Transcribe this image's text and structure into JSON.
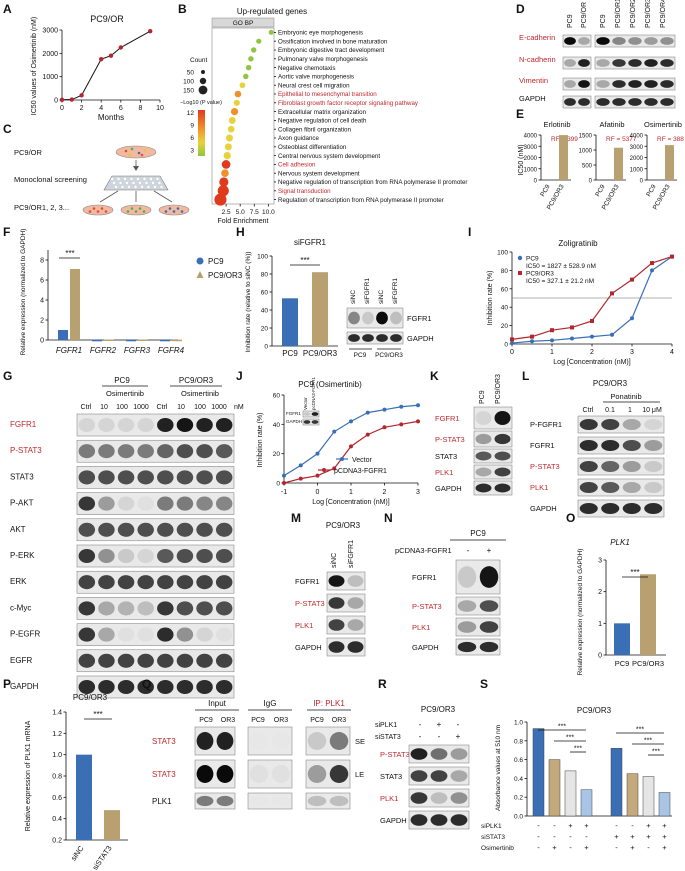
{
  "colors": {
    "pc9": "#3a6fb5",
    "or3": "#b8a070",
    "red_line": "#b3262e",
    "red_text": "#c0282e",
    "black": "#111111",
    "orange": "#e8953a",
    "light_blue": "#aac4e6",
    "grey": "#d8d8d8",
    "blue_accent": "#6aa8ff"
  },
  "panels": {
    "A": "A",
    "B": "B",
    "C": "C",
    "D": "D",
    "E": "E",
    "F": "F",
    "G": "G",
    "H": "H",
    "I": "I",
    "J": "J",
    "K": "K",
    "L": "L",
    "M": "M",
    "N": "N",
    "O": "O",
    "P": "P",
    "Q": "Q",
    "R": "R",
    "S": "S"
  },
  "panelA": {
    "title": "PC9/OR",
    "ylabel": "IC50 values of Osimertinib (nM)",
    "xlabel": "Months",
    "chart_data": {
      "type": "line",
      "x": [
        0,
        1,
        2,
        4,
        5,
        6,
        9
      ],
      "y": [
        10,
        20,
        200,
        1750,
        1900,
        2250,
        2950
      ],
      "xlim": [
        0,
        10
      ],
      "ylim": [
        0,
        3000
      ],
      "xticks": [
        "0",
        "2",
        "4",
        "6",
        "8",
        "10"
      ],
      "yticks": [
        "0",
        "1000",
        "2000",
        "3000"
      ]
    }
  },
  "panelB": {
    "title": "Up-regulated genes",
    "header": "GO BP",
    "xlabel": "Fold Enrichment",
    "legend_count_title": "Count",
    "legend_counts": [
      "50",
      "100",
      "150"
    ],
    "legend_p_title": "−Log10 (P value)",
    "legend_p_ticks": [
      "12",
      "9",
      "6",
      "3"
    ],
    "xticks": [
      "2.5",
      "5.0",
      "7.5",
      "10.0"
    ],
    "terms": [
      {
        "name": "Embryonic eye morphogenesis",
        "red": false
      },
      {
        "name": "Ossification involved in bone maturation",
        "red": false
      },
      {
        "name": "Embryonic digestive tract development",
        "red": false
      },
      {
        "name": "Pulmonary valve morphogenesis",
        "red": false
      },
      {
        "name": "Negative chemotaxis",
        "red": false
      },
      {
        "name": "Aortic valve morphogenesis",
        "red": false
      },
      {
        "name": "Neural crest cell migration",
        "red": false
      },
      {
        "name": "Epithelial to mesenchymal transition",
        "red": true
      },
      {
        "name": "Fibroblast growth factor receptor signaling pathway",
        "red": true
      },
      {
        "name": "Extracellular matrix organization",
        "red": false
      },
      {
        "name": "Negative regulation of cell death",
        "red": false
      },
      {
        "name": "Collagen fibril organization",
        "red": false
      },
      {
        "name": "Axon guidance",
        "red": false
      },
      {
        "name": "Osteoblast differentiation",
        "red": false
      },
      {
        "name": "Central nervous system development",
        "red": false
      },
      {
        "name": "Cell adhesion",
        "red": true
      },
      {
        "name": "Nervous system development",
        "red": false
      },
      {
        "name": "Negative regulation of transcription from RNA polymerase II promoter",
        "red": false
      },
      {
        "name": "Signal transduction",
        "red": true
      },
      {
        "name": "Regulation of transcription from RNA polymerase II promoter",
        "red": false
      }
    ],
    "chart_data": {
      "type": "scatter",
      "fold_enrichment": [
        10.5,
        8.3,
        7.4,
        6.9,
        6.5,
        6.0,
        5.4,
        4.6,
        4.4,
        4.0,
        3.6,
        3.4,
        3.1,
        2.9,
        2.7,
        2.5,
        2.3,
        2.1,
        2.0,
        1.5
      ],
      "count": [
        8,
        10,
        12,
        12,
        12,
        12,
        15,
        25,
        20,
        35,
        30,
        25,
        30,
        30,
        35,
        60,
        40,
        70,
        120,
        150
      ],
      "neg_log10_p": [
        3,
        3,
        3,
        3,
        3,
        3,
        4,
        7,
        5,
        9,
        6,
        5,
        5,
        5,
        6,
        10,
        7,
        11,
        13,
        14
      ]
    }
  },
  "panelC": {
    "label1": "PC9/OR",
    "label2": "Monoclonal screening",
    "label3": "PC9/OR1, 2, 3..."
  },
  "panelD": {
    "cols_left": [
      "PC9",
      "PC9/OR"
    ],
    "cols_right": [
      "PC9",
      "PC9/OR1",
      "PC9/OR2",
      "PC9/OR3",
      "PC9/OR4"
    ],
    "rows": [
      {
        "name": "E-cadherin",
        "red": true
      },
      {
        "name": "N-cadherin",
        "red": true
      },
      {
        "name": "Vimentin",
        "red": true
      },
      {
        "name": "GAPDH",
        "red": false
      }
    ]
  },
  "panelE": {
    "ylabel": "IC50 (nM)",
    "charts": [
      {
        "title": "Erlotinib",
        "rf": "RF = 399",
        "yticks": [
          "0",
          "1000",
          "2000",
          "3000",
          "4000"
        ],
        "chart_data": {
          "type": "bar",
          "categories": [
            "PC9",
            "PC9/OR3"
          ],
          "values": [
            10,
            3990
          ],
          "ylim": [
            0,
            4000
          ]
        }
      },
      {
        "title": "Afatinib",
        "rf": "RF = 5377",
        "yticks": [
          "0",
          "500",
          "1000",
          "1500"
        ],
        "chart_data": {
          "type": "bar",
          "categories": [
            "PC9",
            "PC9/OR3"
          ],
          "values": [
            0.2,
            1075
          ],
          "ylim": [
            0,
            1500
          ]
        }
      },
      {
        "title": "Osimertinib",
        "rf": "RF = 388",
        "yticks": [
          "0",
          "1000",
          "2000",
          "3000",
          "4000"
        ],
        "chart_data": {
          "type": "bar",
          "categories": [
            "PC9",
            "PC9/OR3"
          ],
          "values": [
            8,
            3100
          ],
          "ylim": [
            0,
            4000
          ]
        }
      }
    ]
  },
  "panelF": {
    "ylabel": "Relative expression (normalized to GAPDH)",
    "legend": [
      "PC9",
      "PC9/OR3"
    ],
    "sig": "***",
    "chart_data": {
      "type": "bar",
      "categories": [
        "FGFR1",
        "FGFR2",
        "FGFR3",
        "FGFR4"
      ],
      "series": [
        {
          "name": "PC9",
          "values": [
            1.0,
            0.02,
            0.02,
            0.02
          ]
        },
        {
          "name": "PC9/OR3",
          "values": [
            7.1,
            0.05,
            0.05,
            0.03
          ]
        }
      ],
      "ylim": [
        0,
        9
      ],
      "yticks": [
        "0",
        "2",
        "4",
        "6",
        "8"
      ]
    }
  },
  "panelG": {
    "group1": "PC9",
    "group2": "PC9/OR3",
    "drug": "Osimertinib",
    "lanes": [
      "Ctrl",
      "10",
      "100",
      "1000",
      "Ctrl",
      "10",
      "100",
      "1000"
    ],
    "unit": "nM",
    "rows": [
      {
        "name": "FGFR1",
        "red": true
      },
      {
        "name": "P-STAT3",
        "red": true
      },
      {
        "name": "STAT3",
        "red": false
      },
      {
        "name": "P-AKT",
        "red": false
      },
      {
        "name": "AKT",
        "red": false
      },
      {
        "name": "P-ERK",
        "red": false
      },
      {
        "name": "ERK",
        "red": false
      },
      {
        "name": "c-Myc",
        "red": false
      },
      {
        "name": "P-EGFR",
        "red": false
      },
      {
        "name": "EGFR",
        "red": false
      },
      {
        "name": "GAPDH",
        "red": false
      }
    ]
  },
  "panelH": {
    "title": "siFGFR1",
    "ylabel": "Inhibition rate (relative to siNC (%))",
    "sig": "***",
    "blot_cols": [
      "siNC",
      "siFGFR1",
      "siNC",
      "siFGFR1"
    ],
    "blot_groups": [
      "PC9",
      "PC9/OR3"
    ],
    "blot_rows": [
      "FGFR1",
      "GAPDH"
    ],
    "chart_data": {
      "type": "bar",
      "categories": [
        "PC9",
        "PC9/OR3"
      ],
      "values": [
        53,
        82
      ],
      "ylim": [
        0,
        100
      ],
      "yticks": [
        "0",
        "20",
        "40",
        "60",
        "80",
        "100"
      ]
    }
  },
  "panelI": {
    "title": "Zoligratinib",
    "ylabel": "Inhibition rate (%)",
    "xlabel": "Log [Concentration (nM)]",
    "legend": [
      {
        "name": "PC9",
        "ic": "IC50 = 1827 ± 528.9 nM"
      },
      {
        "name": "PC9/OR3",
        "ic": "IC50 = 327.1 ± 21.2 nM"
      }
    ],
    "chart_data": {
      "type": "line",
      "x": [
        0,
        0.5,
        1,
        1.5,
        2,
        2.5,
        3,
        3.5,
        4
      ],
      "series": [
        {
          "name": "PC9",
          "values": [
            1,
            3,
            4,
            6,
            8,
            10,
            28,
            80,
            95
          ]
        },
        {
          "name": "PC9/OR3",
          "values": [
            5,
            8,
            15,
            18,
            25,
            55,
            70,
            88,
            95
          ]
        }
      ],
      "xlim": [
        0,
        4
      ],
      "ylim": [
        0,
        100
      ],
      "yticks": [
        "0",
        "20",
        "40",
        "60",
        "80",
        "100"
      ],
      "xticks": [
        "0",
        "1",
        "2",
        "3",
        "4"
      ]
    }
  },
  "panelJ": {
    "title": "PC9 (Osimertinib)",
    "ylabel": "Inhibition rate (%)",
    "xlabel": "Log [Concentration (nM)]",
    "inset_cols": [
      "Vector",
      "pcDNA3-FGFR1"
    ],
    "inset_rows": [
      "FGFR1",
      "GAPDH"
    ],
    "legend": [
      "Vector",
      "pCDNA3-FGFR1"
    ],
    "chart_data": {
      "type": "line",
      "x": [
        -1,
        -0.5,
        0,
        0.5,
        1,
        1.5,
        2,
        2.5,
        3
      ],
      "series": [
        {
          "name": "Vector",
          "values": [
            5,
            12,
            20,
            35,
            42,
            48,
            50,
            52,
            53
          ]
        },
        {
          "name": "pCDNA3-FGFR1",
          "values": [
            0,
            3,
            5,
            10,
            25,
            33,
            38,
            40,
            42
          ]
        }
      ],
      "xlim": [
        -1,
        3
      ],
      "ylim": [
        0,
        60
      ],
      "yticks": [
        "0",
        "20",
        "40",
        "60"
      ],
      "xticks": [
        "-1",
        "0",
        "1",
        "2",
        "3"
      ]
    }
  },
  "panelK": {
    "cols": [
      "PC9",
      "PC9/OR3"
    ],
    "rows": [
      {
        "name": "FGFR1",
        "red": true
      },
      {
        "name": "P-STAT3",
        "red": true
      },
      {
        "name": "STAT3",
        "red": false
      },
      {
        "name": "PLK1",
        "red": true
      },
      {
        "name": "GAPDH",
        "red": false
      }
    ]
  },
  "panelL": {
    "group": "PC9/OR3",
    "drug": "Ponatinib",
    "lanes": [
      "Ctrl",
      "0.1",
      "1",
      "10 μM"
    ],
    "rows": [
      {
        "name": "P-FGFR1",
        "red": false
      },
      {
        "name": "FGFR1",
        "red": false
      },
      {
        "name": "P-STAT3",
        "red": true
      },
      {
        "name": "PLK1",
        "red": true
      },
      {
        "name": "GAPDH",
        "red": false
      }
    ]
  },
  "panelM": {
    "group": "PC9/OR3",
    "cols": [
      "siNC",
      "siFGFR1"
    ],
    "rows": [
      {
        "name": "FGFR1",
        "red": false
      },
      {
        "name": "P-STAT3",
        "red": true
      },
      {
        "name": "PLK1",
        "red": true
      },
      {
        "name": "GAPDH",
        "red": false
      }
    ]
  },
  "panelN": {
    "group": "PC9",
    "row_label": "pCDNA3-FGFR1",
    "signs": [
      "-",
      "+"
    ],
    "rows": [
      {
        "name": "FGFR1",
        "red": false
      },
      {
        "name": "P-STAT3",
        "red": true
      },
      {
        "name": "PLK1",
        "red": true
      },
      {
        "name": "GAPDH",
        "red": false
      }
    ]
  },
  "panelO": {
    "title": "PLK1",
    "ylabel": "Relative expression (normalized to GAPDH)",
    "sig": "***",
    "chart_data": {
      "type": "bar",
      "categories": [
        "PC9",
        "PC9/OR3"
      ],
      "values": [
        1.0,
        2.55
      ],
      "ylim": [
        0,
        3
      ],
      "yticks": [
        "0",
        "1",
        "2",
        "3"
      ]
    }
  },
  "panelP": {
    "title": "PC9/OR3",
    "ylabel": "Relative expression of PLK1 mRNA",
    "sig": "***",
    "chart_data": {
      "type": "bar",
      "categories": [
        "siNC",
        "siSTAT3"
      ],
      "values": [
        1.0,
        0.48
      ],
      "ylim": [
        0.2,
        1.4
      ],
      "yticks": [
        "0.2",
        "0.4",
        "0.6",
        "0.8",
        "1.0",
        "1.2",
        "1.4"
      ]
    }
  },
  "panelQ": {
    "headers": [
      "Input",
      "IgG",
      "IP: PLK1"
    ],
    "cols": [
      "PC9",
      "OR3",
      "PC9",
      "OR3",
      "PC9",
      "OR3"
    ],
    "rows": [
      {
        "name": "STAT3",
        "red": true,
        "tag": "SE"
      },
      {
        "name": "STAT3",
        "red": true,
        "tag": "LE"
      },
      {
        "name": "PLK1",
        "red": false,
        "tag": ""
      }
    ]
  },
  "panelR": {
    "group": "PC9/OR3",
    "treatments": [
      {
        "name": "siPLK1",
        "signs": [
          "-",
          "+",
          "-"
        ]
      },
      {
        "name": "siSTAT3",
        "signs": [
          "-",
          "-",
          "+"
        ]
      }
    ],
    "rows": [
      {
        "name": "P-STAT3",
        "red": true
      },
      {
        "name": "STAT3",
        "red": false
      },
      {
        "name": "PLK1",
        "red": true
      },
      {
        "name": "GAPDH",
        "red": false
      }
    ]
  },
  "panelS": {
    "title": "PC9/OR3",
    "ylabel": "Absorbance values at 510 nm",
    "treatments": [
      {
        "name": "siPLK1",
        "signs": [
          "-",
          "-",
          "+",
          "+",
          "-",
          "-",
          "+",
          "+"
        ]
      },
      {
        "name": "siSTAT3",
        "signs": [
          "-",
          "-",
          "-",
          "-",
          "+",
          "+",
          "+",
          "+"
        ]
      },
      {
        "name": "Osimertinib",
        "signs": [
          "-",
          "+",
          "-",
          "+",
          "-",
          "+",
          "-",
          "+"
        ]
      }
    ],
    "sig": "***",
    "chart_data": {
      "type": "bar",
      "categories": [
        "1",
        "2",
        "3",
        "4",
        "5",
        "6",
        "7",
        "8"
      ],
      "values": [
        0.93,
        0.6,
        0.48,
        0.28,
        0.72,
        0.45,
        0.42,
        0.25
      ],
      "ylim": [
        0,
        1.0
      ],
      "yticks": [
        "0.0",
        "0.2",
        "0.4",
        "0.6",
        "0.8",
        "1.0"
      ]
    }
  }
}
